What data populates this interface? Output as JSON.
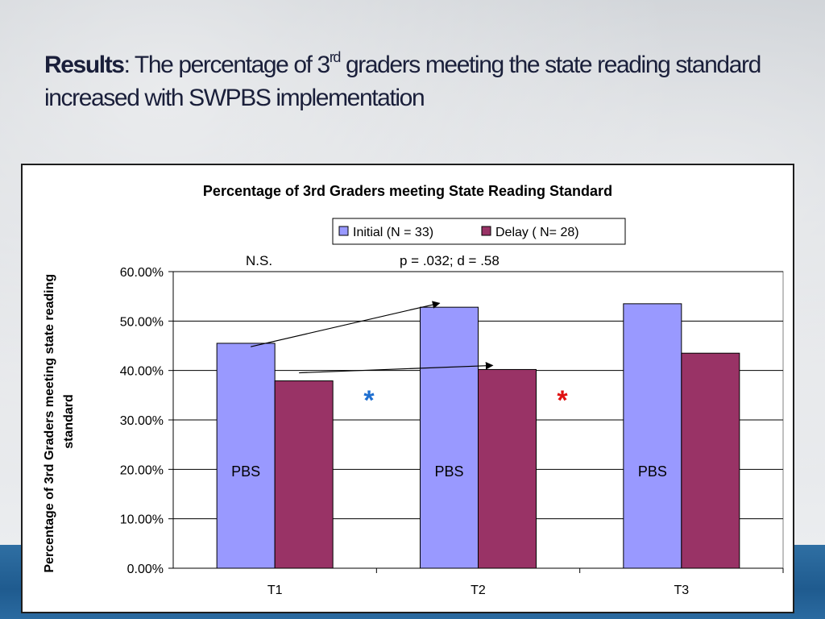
{
  "slide": {
    "title_bold": "Results",
    "title_pre": ": The percentage of 3",
    "title_sup": "rd",
    "title_rest": " graders meeting the state reading standard increased with SWPBS implementation"
  },
  "chart_data": {
    "type": "bar",
    "title": "Percentage of 3rd Graders meeting State Reading Standard",
    "xlabel": "",
    "ylabel": "Percentage of 3rd Graders meeting state reading standard",
    "categories": [
      "T1",
      "T2",
      "T3"
    ],
    "series": [
      {
        "name": "Initial (N = 33)",
        "values": [
          45.5,
          52.8,
          53.5
        ]
      },
      {
        "name": "Delay ( N= 28)",
        "values": [
          37.9,
          40.2,
          43.5
        ]
      }
    ],
    "ylim": [
      0,
      60
    ],
    "yticks": [
      "0.00%",
      "10.00%",
      "20.00%",
      "30.00%",
      "40.00%",
      "50.00%",
      "60.00%"
    ],
    "grid": true,
    "legend_position": "top-right",
    "colors": {
      "Initial": "#9999ff",
      "Delay": "#993366",
      "asterisk_blue": "#1f6fd0",
      "asterisk_red": "#e01010"
    },
    "annotations": {
      "ns": "N.S.",
      "stats": "p = .032; d = .58",
      "bar_labels": [
        "PBS",
        "PBS",
        "PBS"
      ],
      "asterisk": "*"
    }
  }
}
